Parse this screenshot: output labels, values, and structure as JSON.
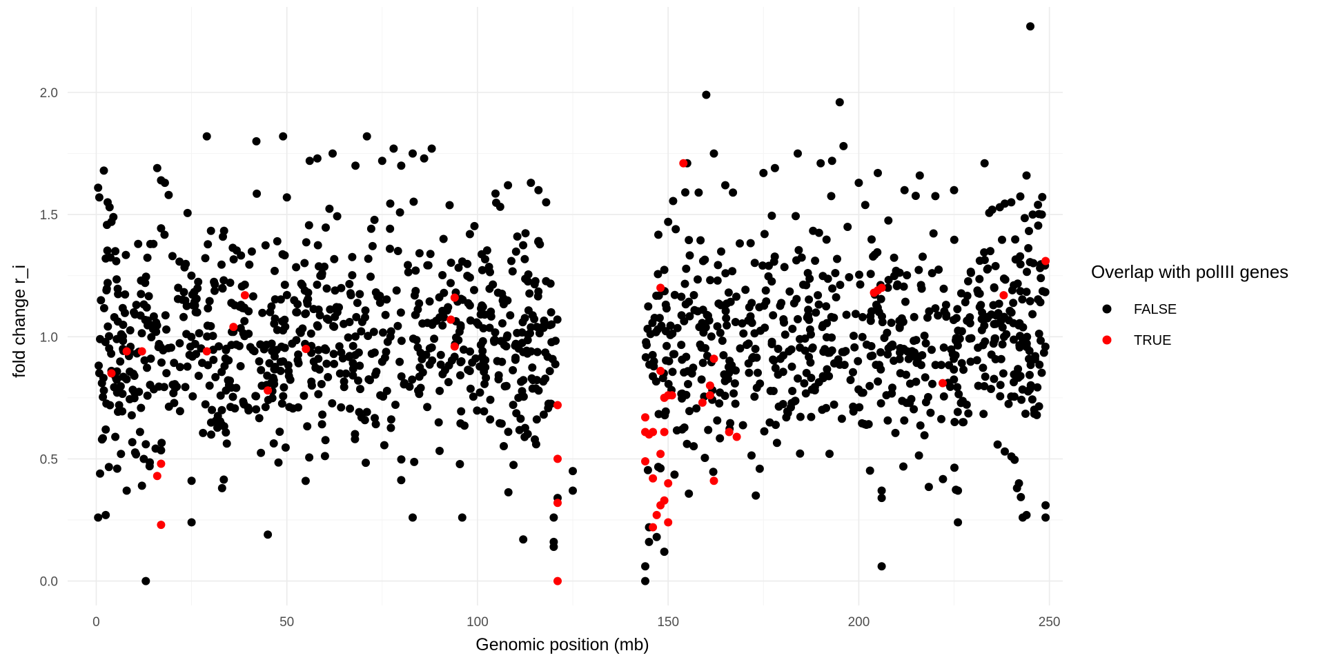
{
  "chart_data": {
    "type": "scatter",
    "title": "",
    "xlabel": "Genomic position (mb)",
    "ylabel": "fold change r_i",
    "xlim": [
      -7.5,
      253.5
    ],
    "ylim": [
      -0.1,
      2.35
    ],
    "x_ticks": [
      0,
      50,
      100,
      150,
      200,
      250
    ],
    "x_tick_labels": [
      "0",
      "50",
      "100",
      "150",
      "200",
      "250"
    ],
    "y_ticks": [
      0.0,
      0.5,
      1.0,
      1.5,
      2.0
    ],
    "y_tick_labels": [
      "0.0",
      "0.5",
      "1.0",
      "1.5",
      "2.0"
    ],
    "grid": true,
    "legend": {
      "title": "Overlap with polIII genes",
      "position": "right",
      "entries": [
        {
          "label": "FALSE",
          "color": "#000000"
        },
        {
          "label": "TRUE",
          "color": "#ff0000"
        }
      ]
    },
    "series": [
      {
        "name": "FALSE",
        "color": "#000000",
        "points": [
          [
            0.5,
            1.61
          ],
          [
            0.8,
            1.57
          ],
          [
            2,
            1.68
          ],
          [
            2.5,
            1.32
          ],
          [
            3,
            1.55
          ],
          [
            3.5,
            1.53
          ],
          [
            4,
            1.47
          ],
          [
            4.5,
            1.49
          ],
          [
            5,
            1.35
          ],
          [
            1,
            0.99
          ],
          [
            1.5,
            0.81
          ],
          [
            2,
            0.78
          ],
          [
            2.5,
            0.62
          ],
          [
            1,
            0.44
          ],
          [
            0.5,
            0.26
          ],
          [
            2.5,
            0.27
          ],
          [
            3,
            1.22
          ],
          [
            4,
            0.86
          ],
          [
            5,
            0.59
          ],
          [
            5.5,
            0.46
          ],
          [
            6,
            0.72
          ],
          [
            6.5,
            0.52
          ],
          [
            7,
            0.95
          ],
          [
            8,
            0.37
          ],
          [
            10,
            0.84
          ],
          [
            11,
            1.38
          ],
          [
            12,
            0.39
          ],
          [
            13,
            0.0
          ],
          [
            13,
            0.56
          ],
          [
            14,
            0.47
          ],
          [
            15,
            1.38
          ],
          [
            16,
            1.69
          ],
          [
            17,
            1.64
          ],
          [
            18,
            1.63
          ],
          [
            19,
            1.58
          ],
          [
            20,
            1.33
          ],
          [
            25,
            0.41
          ],
          [
            25,
            0.24
          ],
          [
            29,
            1.82
          ],
          [
            33,
            0.38
          ],
          [
            42,
            1.8
          ],
          [
            45,
            0.19
          ],
          [
            49,
            1.82
          ],
          [
            50,
            1.57
          ],
          [
            56,
            1.72
          ],
          [
            58,
            1.73
          ],
          [
            62,
            1.75
          ],
          [
            68,
            1.7
          ],
          [
            71,
            1.82
          ],
          [
            75,
            1.72
          ],
          [
            78,
            1.77
          ],
          [
            80,
            1.7
          ],
          [
            83,
            1.75
          ],
          [
            83,
            0.26
          ],
          [
            86,
            1.73
          ],
          [
            88,
            1.77
          ],
          [
            96,
            0.26
          ],
          [
            98,
            1.42
          ],
          [
            108,
            1.62
          ],
          [
            112,
            0.17
          ],
          [
            114,
            1.63
          ],
          [
            116,
            1.6
          ],
          [
            118,
            1.55
          ],
          [
            120,
            0.26
          ],
          [
            120,
            0.16
          ],
          [
            120,
            0.14
          ],
          [
            121,
            0.34
          ],
          [
            125,
            0.45
          ],
          [
            125,
            0.37
          ],
          [
            144,
            0.06
          ],
          [
            144,
            0.0
          ],
          [
            145,
            0.16
          ],
          [
            145,
            0.22
          ],
          [
            147,
            0.18
          ],
          [
            149,
            0.12
          ],
          [
            150,
            1.47
          ],
          [
            152,
            1.44
          ],
          [
            155,
            1.71
          ],
          [
            158,
            1.59
          ],
          [
            160,
            1.99
          ],
          [
            162,
            1.75
          ],
          [
            165,
            1.62
          ],
          [
            167,
            1.59
          ],
          [
            173,
            0.35
          ],
          [
            175,
            1.67
          ],
          [
            178,
            1.69
          ],
          [
            184,
            1.75
          ],
          [
            190,
            1.71
          ],
          [
            193,
            1.72
          ],
          [
            195,
            1.96
          ],
          [
            196,
            1.78
          ],
          [
            200,
            1.63
          ],
          [
            205,
            1.67
          ],
          [
            206,
            0.06
          ],
          [
            206,
            0.34
          ],
          [
            206,
            0.37
          ],
          [
            212,
            1.6
          ],
          [
            216,
            1.66
          ],
          [
            225,
            1.6
          ],
          [
            226,
            0.24
          ],
          [
            226,
            0.37
          ],
          [
            233,
            1.71
          ],
          [
            235,
            1.52
          ],
          [
            237,
            1.53
          ],
          [
            240,
            1.55
          ],
          [
            242,
            0.4
          ],
          [
            243,
            0.26
          ],
          [
            244,
            0.27
          ],
          [
            244,
            1.66
          ],
          [
            245,
            2.27
          ],
          [
            247,
            1.54
          ],
          [
            248,
            1.5
          ],
          [
            249,
            0.31
          ],
          [
            249,
            0.26
          ]
        ]
      },
      {
        "name": "TRUE",
        "color": "#ff0000",
        "points": [
          [
            4,
            0.85
          ],
          [
            8,
            0.94
          ],
          [
            12,
            0.94
          ],
          [
            16,
            0.43
          ],
          [
            17,
            0.48
          ],
          [
            17,
            0.23
          ],
          [
            29,
            0.94
          ],
          [
            36,
            1.04
          ],
          [
            39,
            1.17
          ],
          [
            45,
            0.78
          ],
          [
            55,
            0.95
          ],
          [
            93,
            1.07
          ],
          [
            94,
            1.16
          ],
          [
            94,
            0.96
          ],
          [
            121,
            0.72
          ],
          [
            121,
            0.5
          ],
          [
            121,
            0.32
          ],
          [
            121,
            0.0
          ],
          [
            144,
            0.67
          ],
          [
            144,
            0.61
          ],
          [
            144,
            0.49
          ],
          [
            145,
            0.6
          ],
          [
            146,
            0.42
          ],
          [
            146,
            0.61
          ],
          [
            146,
            0.22
          ],
          [
            147,
            0.27
          ],
          [
            148,
            1.2
          ],
          [
            148,
            0.31
          ],
          [
            148,
            0.86
          ],
          [
            148,
            0.52
          ],
          [
            149,
            0.33
          ],
          [
            149,
            0.61
          ],
          [
            149,
            0.75
          ],
          [
            150,
            0.4
          ],
          [
            150,
            0.76
          ],
          [
            150,
            0.24
          ],
          [
            151,
            0.76
          ],
          [
            154,
            1.71
          ],
          [
            159,
            0.73
          ],
          [
            161,
            0.8
          ],
          [
            161,
            0.76
          ],
          [
            162,
            0.91
          ],
          [
            162,
            0.41
          ],
          [
            166,
            0.61
          ],
          [
            168,
            0.59
          ],
          [
            204,
            1.18
          ],
          [
            205,
            1.19
          ],
          [
            206,
            1.2
          ],
          [
            222,
            0.81
          ],
          [
            238,
            1.17
          ],
          [
            249,
            1.31
          ]
        ]
      }
    ],
    "background_cloud": {
      "series": "FALSE",
      "segments": [
        {
          "x_range": [
            0.5,
            121
          ],
          "y_center": 0.97,
          "y_spread": 0.5,
          "y_min": 0.36,
          "y_max": 1.6,
          "count": 760
        },
        {
          "x_range": [
            144,
            249
          ],
          "y_center": 1.0,
          "y_spread": 0.5,
          "y_min": 0.34,
          "y_max": 1.62,
          "count": 650
        }
      ]
    }
  }
}
